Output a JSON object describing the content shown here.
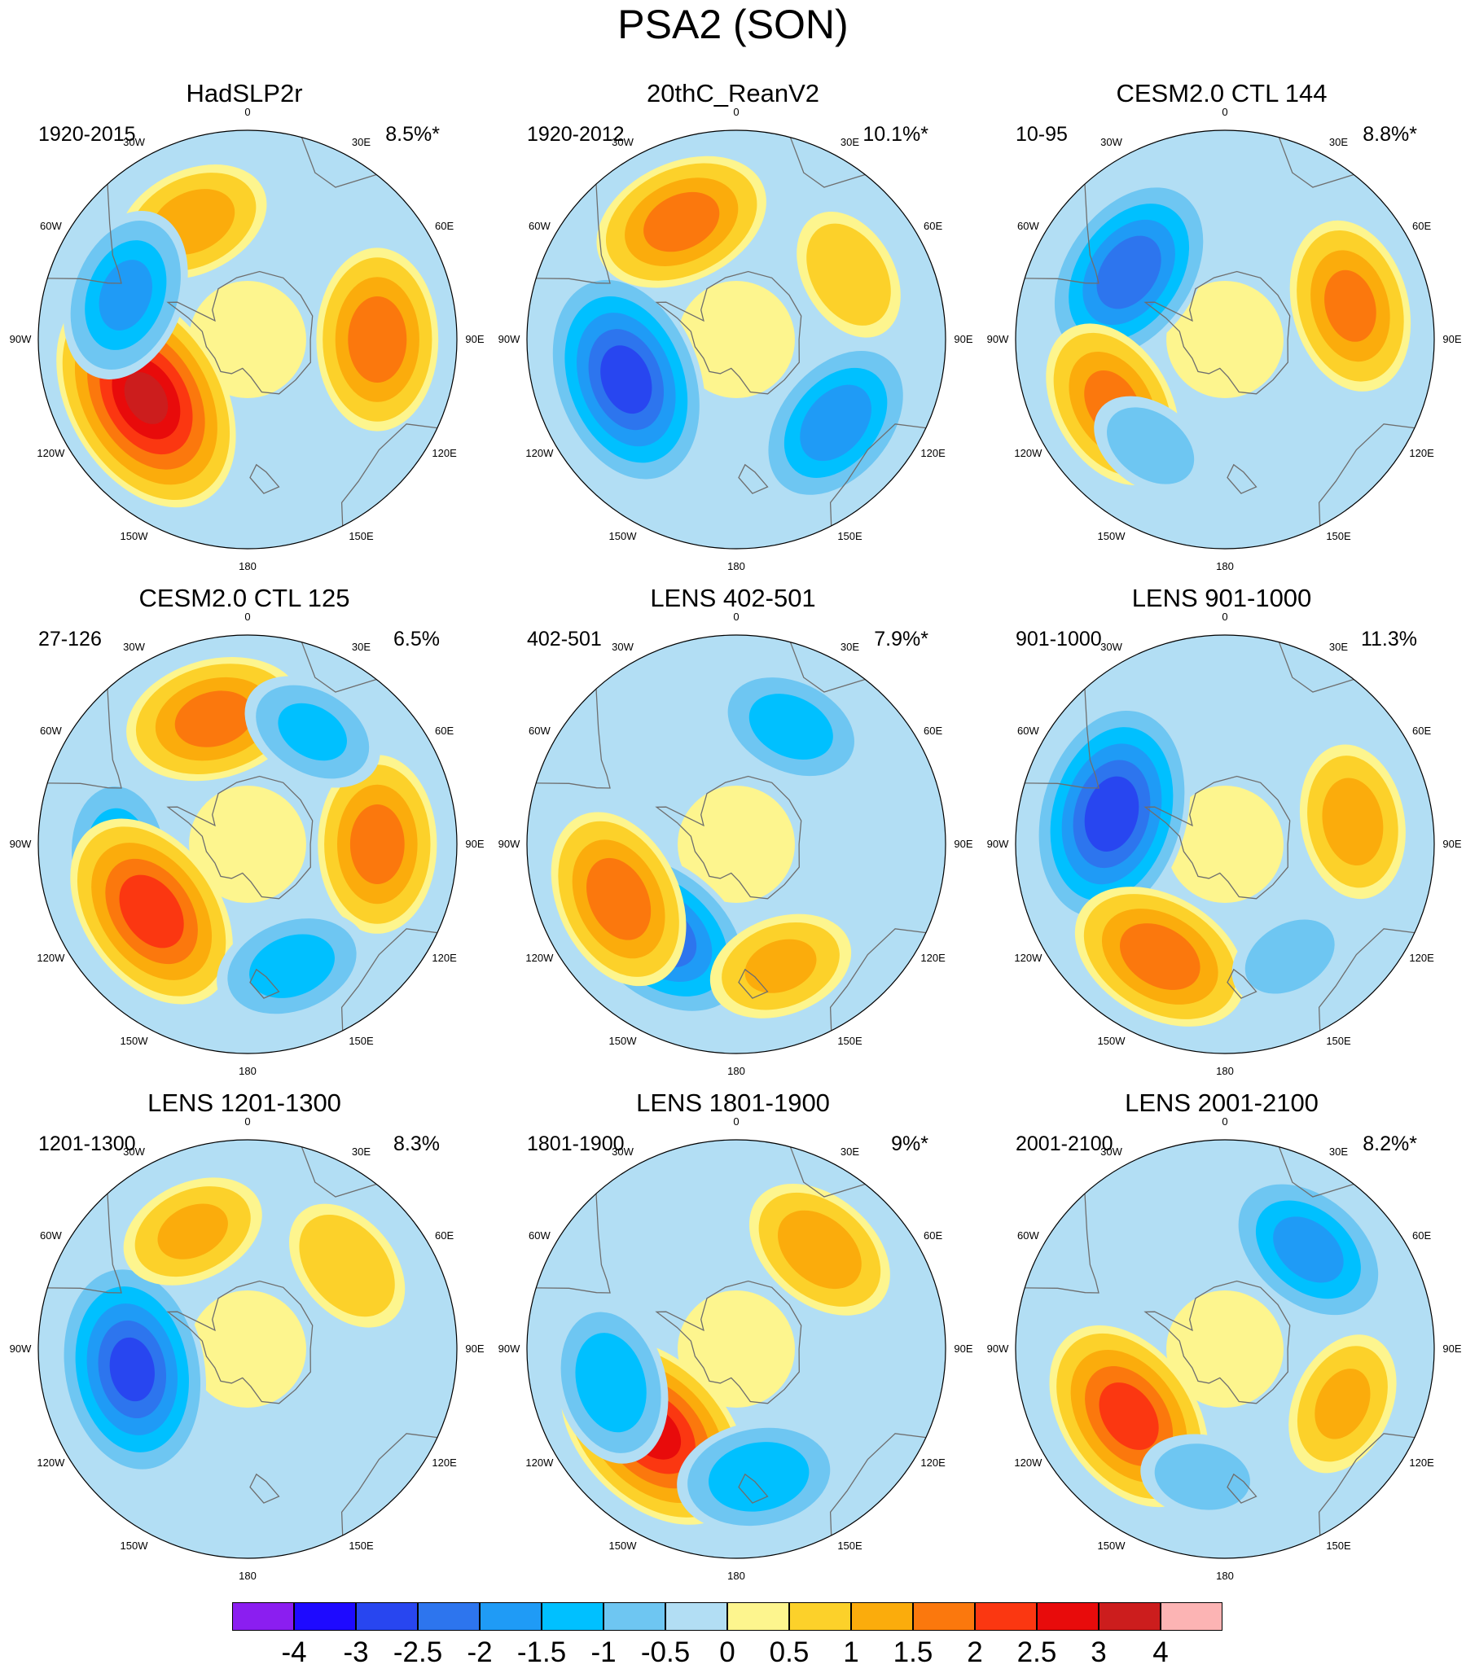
{
  "title": "PSA2 (SON)",
  "lon_labels": [
    "0",
    "30E",
    "60E",
    "90E",
    "120E",
    "150E",
    "180",
    "150W",
    "120W",
    "90W",
    "60W",
    "30W"
  ],
  "panels": [
    {
      "title": "HadSLP2r",
      "period": "1920-2015",
      "pct": "8.5%*"
    },
    {
      "title": "20thC_ReanV2",
      "period": "1920-2012",
      "pct": "10.1%*"
    },
    {
      "title": "CESM2.0 CTL 144",
      "period": "10-95",
      "pct": "8.8%*"
    },
    {
      "title": "CESM2.0 CTL 125",
      "period": "27-126",
      "pct": "6.5%"
    },
    {
      "title": "LENS 402-501",
      "period": "402-501",
      "pct": "7.9%*"
    },
    {
      "title": "LENS 901-1000",
      "period": "901-1000",
      "pct": "11.3%"
    },
    {
      "title": "LENS 1201-1300",
      "period": "1201-1300",
      "pct": "8.3%"
    },
    {
      "title": "LENS 1801-1900",
      "period": "1801-1900",
      "pct": "9%*"
    },
    {
      "title": "LENS 2001-2100",
      "period": "2001-2100",
      "pct": "8.2%*"
    }
  ],
  "colorbar": {
    "labels": [
      "-4",
      "-3",
      "-2.5",
      "-2",
      "-1.5",
      "-1",
      "-0.5",
      "0",
      "0.5",
      "1",
      "1.5",
      "2",
      "2.5",
      "3",
      "4"
    ],
    "colors": [
      "#8b1ef0",
      "#1e0aff",
      "#2846f0",
      "#2d75ee",
      "#1f9bf6",
      "#00c0ff",
      "#6ec6f2",
      "#b2def4",
      "#fdf58e",
      "#fcd12a",
      "#fbac0c",
      "#fb780d",
      "#fb3711",
      "#e80b0b",
      "#cc1d1d",
      "#fcb4b4"
    ]
  },
  "chart_data": {
    "type": "heatmap",
    "title": "PSA2 (SON)",
    "projection": "south polar stereographic",
    "levels": [
      -4,
      -3,
      -2.5,
      -2,
      -1.5,
      -1,
      -0.5,
      0,
      0.5,
      1,
      1.5,
      2,
      2.5,
      3,
      4
    ],
    "panels": [
      {
        "title": "HadSLP2r",
        "period": "1920-2015",
        "variance": "8.5%*",
        "centers": [
          {
            "lon": -120,
            "value": 3.0
          },
          {
            "lon": 90,
            "value": 1.8
          },
          {
            "lon": -25,
            "value": 1.2
          },
          {
            "lon": -70,
            "value": -1.6
          }
        ]
      },
      {
        "title": "20thC_ReanV2",
        "period": "1920-2012",
        "variance": "10.1%*",
        "centers": [
          {
            "lon": -110,
            "value": -2.7
          },
          {
            "lon": -25,
            "value": 1.7
          },
          {
            "lon": 130,
            "value": -1.8
          },
          {
            "lon": 60,
            "value": 0.8
          }
        ]
      },
      {
        "title": "CESM2.0 CTL 144",
        "period": "10-95",
        "variance": "8.8%*",
        "centers": [
          {
            "lon": -55,
            "value": -2.3
          },
          {
            "lon": -120,
            "value": 1.6
          },
          {
            "lon": 75,
            "value": 1.6
          },
          {
            "lon": -145,
            "value": -0.6
          }
        ]
      },
      {
        "title": "CESM2.0 CTL 125",
        "period": "27-126",
        "variance": "6.5%",
        "centers": [
          {
            "lon": -15,
            "value": 1.7
          },
          {
            "lon": -95,
            "value": -1.3
          },
          {
            "lon": -125,
            "value": 2.3
          },
          {
            "lon": 90,
            "value": 1.7
          },
          {
            "lon": 160,
            "value": -1.2
          },
          {
            "lon": 30,
            "value": -1.0
          }
        ]
      },
      {
        "title": "LENS 402-501",
        "period": "402-501",
        "variance": "7.9%*",
        "centers": [
          {
            "lon": -140,
            "value": -2.3
          },
          {
            "lon": -115,
            "value": 1.8
          },
          {
            "lon": 25,
            "value": -1.2
          },
          {
            "lon": 160,
            "value": 1.0
          }
        ]
      },
      {
        "title": "LENS 901-1000",
        "period": "901-1000",
        "variance": "11.3%",
        "centers": [
          {
            "lon": -75,
            "value": -2.8
          },
          {
            "lon": -150,
            "value": 1.8
          },
          {
            "lon": 80,
            "value": 1.2
          },
          {
            "lon": 150,
            "value": -0.6
          }
        ]
      },
      {
        "title": "LENS 1201-1300",
        "period": "1201-1300",
        "variance": "8.3%",
        "centers": [
          {
            "lon": -100,
            "value": -2.6
          },
          {
            "lon": -25,
            "value": 1.0
          },
          {
            "lon": 50,
            "value": 0.9
          }
        ]
      },
      {
        "title": "LENS 1801-1900",
        "period": "1801-1900",
        "variance": "9%*",
        "centers": [
          {
            "lon": -135,
            "value": 2.6
          },
          {
            "lon": 40,
            "value": 1.3
          },
          {
            "lon": -105,
            "value": -1.4
          },
          {
            "lon": 170,
            "value": -1.4
          }
        ]
      },
      {
        "title": "LENS 2001-2100",
        "period": "2001-2100",
        "variance": "8.2%*",
        "centers": [
          {
            "lon": -125,
            "value": 2.2
          },
          {
            "lon": 40,
            "value": -1.7
          },
          {
            "lon": 115,
            "value": 1.0
          },
          {
            "lon": -170,
            "value": -0.6
          }
        ]
      }
    ]
  }
}
